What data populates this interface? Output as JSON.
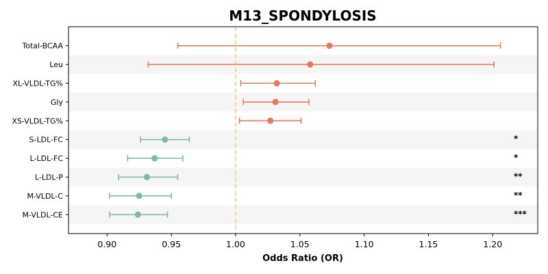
{
  "chart_data": {
    "type": "forest",
    "title": "M13_SPONDYLOSIS",
    "xlabel": "Odds Ratio (OR)",
    "xlim": [
      0.87,
      1.235
    ],
    "xticks": [
      "0.90",
      "0.95",
      "1.00",
      "1.05",
      "1.10",
      "1.15",
      "1.20"
    ],
    "reference_line": 1.0,
    "row_shading": "alternating",
    "colors": {
      "positive": "#e07b62",
      "negative": "#86b99c",
      "reference": "#f5c58a",
      "stripe": "#f5f5f5"
    },
    "rows": [
      {
        "label": "Total-BCAA",
        "or": 1.073,
        "lo": 0.955,
        "hi": 1.206,
        "sig": ""
      },
      {
        "label": "Leu",
        "or": 1.058,
        "lo": 0.932,
        "hi": 1.201,
        "sig": ""
      },
      {
        "label": "XL-VLDL-TG%",
        "or": 1.032,
        "lo": 1.004,
        "hi": 1.062,
        "sig": ""
      },
      {
        "label": "Gly",
        "or": 1.031,
        "lo": 1.006,
        "hi": 1.057,
        "sig": ""
      },
      {
        "label": "XS-VLDL-TG%",
        "or": 1.027,
        "lo": 1.003,
        "hi": 1.051,
        "sig": ""
      },
      {
        "label": "S-LDL-FC",
        "or": 0.945,
        "lo": 0.926,
        "hi": 0.964,
        "sig": "*"
      },
      {
        "label": "L-LDL-FC",
        "or": 0.937,
        "lo": 0.916,
        "hi": 0.959,
        "sig": "*"
      },
      {
        "label": "L-LDL-P",
        "or": 0.931,
        "lo": 0.909,
        "hi": 0.955,
        "sig": "**"
      },
      {
        "label": "M-VLDL-C",
        "or": 0.925,
        "lo": 0.902,
        "hi": 0.95,
        "sig": "**"
      },
      {
        "label": "M-VLDL-CE",
        "or": 0.924,
        "lo": 0.902,
        "hi": 0.947,
        "sig": "***"
      }
    ]
  }
}
